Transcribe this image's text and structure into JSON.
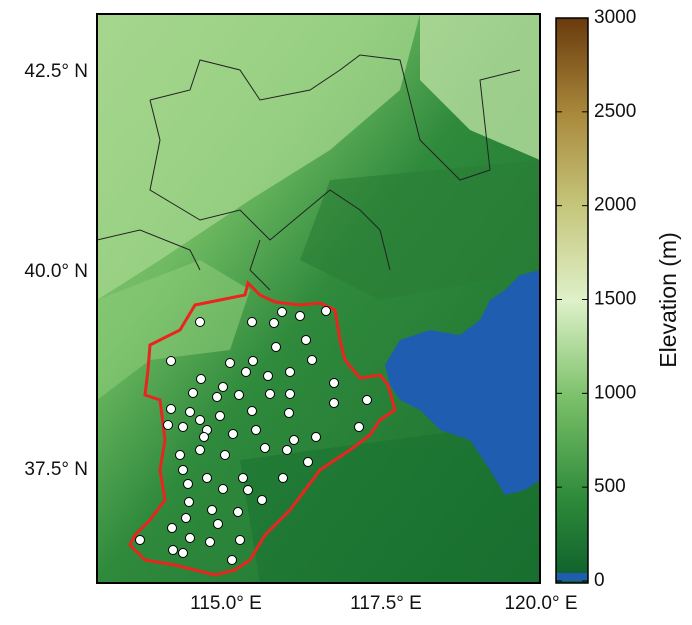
{
  "map": {
    "lat_ticks": [
      "42.5° N",
      "40.0° N",
      "37.5° N"
    ],
    "lon_ticks": [
      "115.0° E",
      "117.5° E",
      "120.0° E"
    ],
    "colorbar": {
      "label": "Elevation (m)",
      "range": [
        0,
        3000
      ],
      "ticks": [
        0,
        500,
        1000,
        1500,
        2000,
        2500,
        3000
      ]
    }
  }
}
